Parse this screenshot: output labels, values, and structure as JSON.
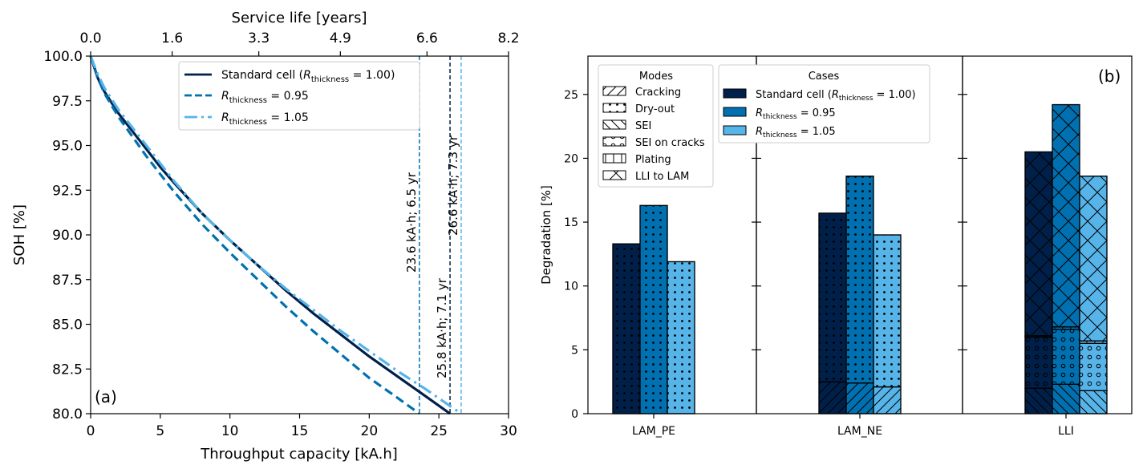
{
  "colors": {
    "standard": "#00204a",
    "r095": "#0070b0",
    "r105": "#56b4e9",
    "axis": "#000000"
  },
  "chart_data": [
    {
      "type": "line",
      "panel_label": "(a)",
      "xlabel": "Throughput capacity [kA.h]",
      "ylabel": "SOH [%]",
      "top_xlabel": "Service life [years]",
      "xlim": [
        0,
        30
      ],
      "ylim": [
        80,
        100
      ],
      "xticks": [
        0,
        5,
        10,
        15,
        20,
        25,
        30
      ],
      "xtick_labels": [
        "0",
        "5",
        "10",
        "15",
        "20",
        "25",
        "30"
      ],
      "yticks": [
        80,
        82.5,
        85,
        87.5,
        90,
        92.5,
        95,
        97.5,
        100
      ],
      "ytick_labels": [
        "80.0",
        "82.5",
        "85.0",
        "87.5",
        "90.0",
        "92.5",
        "95.0",
        "97.5",
        "100.0"
      ],
      "top_xticks": [
        0,
        1.6,
        3.3,
        4.9,
        6.6,
        8.2
      ],
      "top_xtick_labels": [
        "0.0",
        "1.6",
        "3.3",
        "4.9",
        "6.6",
        "8.2"
      ],
      "series": [
        {
          "name": "Standard cell (R_thickness = 1.00)",
          "legend_prefix": "Standard cell (",
          "legend_math": "R",
          "legend_sub": "thickness",
          "legend_suffix": " = 1.00)",
          "style": "solid",
          "x": [
            0,
            0.5,
            1,
            2,
            3,
            4,
            5,
            6,
            8,
            10,
            12,
            14,
            16,
            18,
            20,
            22,
            24,
            25.8
          ],
          "y": [
            100,
            98.8,
            98.0,
            96.8,
            95.8,
            94.8,
            93.8,
            92.9,
            91.2,
            89.7,
            88.3,
            86.9,
            85.6,
            84.4,
            83.2,
            82.1,
            81.0,
            80.0
          ]
        },
        {
          "name": "R_thickness = 0.95",
          "legend_prefix": "",
          "legend_math": "R",
          "legend_sub": "thickness",
          "legend_suffix": " = 0.95",
          "style": "dashed",
          "x": [
            0,
            0.5,
            1,
            2,
            3,
            4,
            5,
            6,
            8,
            10,
            12,
            14,
            16,
            18,
            20,
            22,
            23.6
          ],
          "y": [
            100,
            98.8,
            97.9,
            96.6,
            95.5,
            94.4,
            93.4,
            92.4,
            90.6,
            89.0,
            87.5,
            86.0,
            84.6,
            83.3,
            82.0,
            80.9,
            80.0
          ]
        },
        {
          "name": "R_thickness = 1.05",
          "legend_prefix": "",
          "legend_math": "R",
          "legend_sub": "thickness",
          "legend_suffix": " = 1.05",
          "style": "dashdot",
          "x": [
            0,
            0.5,
            1,
            2,
            3,
            4,
            5,
            6,
            8,
            10,
            12,
            14,
            16,
            18,
            20,
            22,
            24,
            26.6
          ],
          "y": [
            100,
            99.0,
            98.2,
            97.0,
            96.0,
            95.0,
            94.0,
            93.0,
            91.2,
            89.7,
            88.3,
            87.0,
            85.8,
            84.6,
            83.5,
            82.4,
            81.4,
            80.0
          ]
        }
      ],
      "annotations": [
        {
          "x": 23.6,
          "text": "23.6 kA·h; 6.5 yr",
          "series": "r095"
        },
        {
          "x": 25.8,
          "text": "25.8 kA·h; 7.1 yr",
          "series": "standard"
        },
        {
          "x": 26.6,
          "text": "26.6 kA·h; 7.3 yr",
          "series": "r105"
        }
      ]
    },
    {
      "type": "bar",
      "stacked": true,
      "panel_label": "(b)",
      "ylabel": "Degradation [%]",
      "ylim": [
        0,
        28
      ],
      "yticks": [
        0,
        5,
        10,
        15,
        20,
        25
      ],
      "ytick_labels": [
        "0",
        "5",
        "10",
        "15",
        "20",
        "25"
      ],
      "categories": [
        "LAM_PE",
        "LAM_NE",
        "LLI"
      ],
      "cases": [
        {
          "name": "Standard cell (R_thickness = 1.00)",
          "legend_prefix": "Standard cell (",
          "legend_math": "R",
          "legend_sub": "thickness",
          "legend_suffix": " = 1.00)"
        },
        {
          "name": "R_thickness = 0.95",
          "legend_prefix": "",
          "legend_math": "R",
          "legend_sub": "thickness",
          "legend_suffix": " = 0.95"
        },
        {
          "name": "R_thickness = 1.05",
          "legend_prefix": "",
          "legend_math": "R",
          "legend_sub": "thickness",
          "legend_suffix": " = 1.05"
        }
      ],
      "modes": [
        "Cracking",
        "Dry-out",
        "SEI",
        "SEI on cracks",
        "Plating",
        "LLI to LAM"
      ],
      "modes_title": "Modes",
      "cases_title": "Cases",
      "stacks": {
        "LAM_PE": [
          [
            {
              "mode": "Dry-out",
              "value": 13.3
            }
          ],
          [
            {
              "mode": "Dry-out",
              "value": 16.3
            }
          ],
          [
            {
              "mode": "Dry-out",
              "value": 11.9
            }
          ]
        ],
        "LAM_NE": [
          [
            {
              "mode": "Cracking",
              "value": 2.5
            },
            {
              "mode": "Dry-out",
              "value": 13.2
            }
          ],
          [
            {
              "mode": "Cracking",
              "value": 2.4
            },
            {
              "mode": "Dry-out",
              "value": 16.2
            }
          ],
          [
            {
              "mode": "Cracking",
              "value": 2.1
            },
            {
              "mode": "Dry-out",
              "value": 11.9
            }
          ]
        ],
        "LLI": [
          [
            {
              "mode": "SEI",
              "value": 2.0
            },
            {
              "mode": "SEI on cracks",
              "value": 4.0
            },
            {
              "mode": "Plating",
              "value": 0.1
            },
            {
              "mode": "LLI to LAM",
              "value": 14.4
            }
          ],
          [
            {
              "mode": "SEI",
              "value": 2.3
            },
            {
              "mode": "SEI on cracks",
              "value": 4.3
            },
            {
              "mode": "Plating",
              "value": 0.2
            },
            {
              "mode": "LLI to LAM",
              "value": 17.4
            }
          ],
          [
            {
              "mode": "SEI",
              "value": 1.8
            },
            {
              "mode": "SEI on cracks",
              "value": 3.7
            },
            {
              "mode": "Plating",
              "value": 0.2
            },
            {
              "mode": "LLI to LAM",
              "value": 12.9
            }
          ]
        ]
      }
    }
  ]
}
